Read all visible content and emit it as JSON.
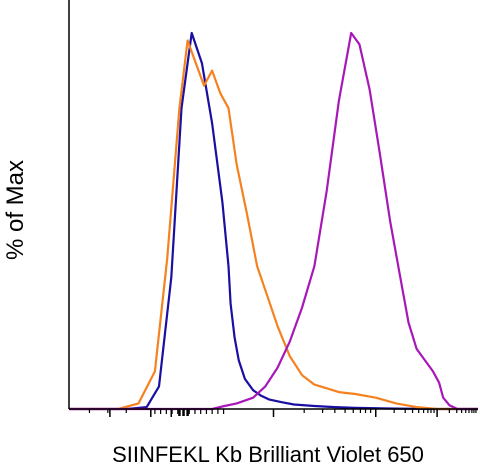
{
  "chart_data": {
    "type": "line",
    "title": "",
    "xlabel": "SIINFEKL Kb Brilliant Violet 650",
    "ylabel": "% of Max",
    "x_scale": "log",
    "xlim": [
      -5,
      5
    ],
    "ylim": [
      0,
      100
    ],
    "grid": false,
    "legend": "none",
    "series": [
      {
        "color": "#1a0fa0",
        "x": [
          -5,
          -3.6,
          -3.1,
          -2.8,
          -2.5,
          -2.25,
          -2.0,
          -1.75,
          -1.5,
          -1.25,
          -1.1,
          -1.05,
          -0.95,
          -0.85,
          -0.7,
          -0.5,
          -0.3,
          -0.1,
          0.2,
          0.5,
          1.0,
          1.5,
          2.0,
          3.0,
          4.0,
          5.0
        ],
        "y": [
          0,
          0,
          0.5,
          6,
          35,
          80,
          100,
          92,
          76,
          55,
          38,
          28,
          19,
          13,
          8,
          5,
          3.5,
          2.5,
          1.8,
          1.2,
          0.8,
          0.5,
          0.3,
          0.1,
          0,
          0
        ]
      },
      {
        "color": "#f58220",
        "x": [
          -5,
          -3.8,
          -3.3,
          -2.9,
          -2.6,
          -2.3,
          -2.1,
          -1.9,
          -1.7,
          -1.5,
          -1.3,
          -1.1,
          -0.9,
          -0.65,
          -0.4,
          -0.15,
          0.1,
          0.4,
          0.7,
          1.0,
          1.3,
          1.6,
          2.0,
          2.5,
          3.0,
          3.5,
          4.0,
          5.0
        ],
        "y": [
          0,
          0,
          1.5,
          10,
          40,
          80,
          98,
          92,
          86,
          90,
          84,
          80,
          65,
          52,
          38,
          30,
          22,
          14,
          9,
          6.5,
          5.5,
          4.5,
          4,
          3,
          1.5,
          0.5,
          0,
          0
        ]
      },
      {
        "color": "#a818b8",
        "x": [
          -5,
          -1.5,
          -1.2,
          -0.9,
          -0.5,
          -0.2,
          0.1,
          0.4,
          0.7,
          1.0,
          1.3,
          1.6,
          1.9,
          2.1,
          2.35,
          2.6,
          2.85,
          3.1,
          3.3,
          3.5,
          3.7,
          3.9,
          4.05,
          4.15,
          4.3,
          4.5,
          5.0
        ],
        "y": [
          0,
          0,
          0.8,
          1.5,
          3,
          6,
          11,
          18,
          27,
          38,
          58,
          82,
          100,
          97,
          85,
          68,
          50,
          35,
          23,
          16,
          13,
          10,
          7,
          3,
          1,
          0,
          0
        ]
      }
    ]
  }
}
